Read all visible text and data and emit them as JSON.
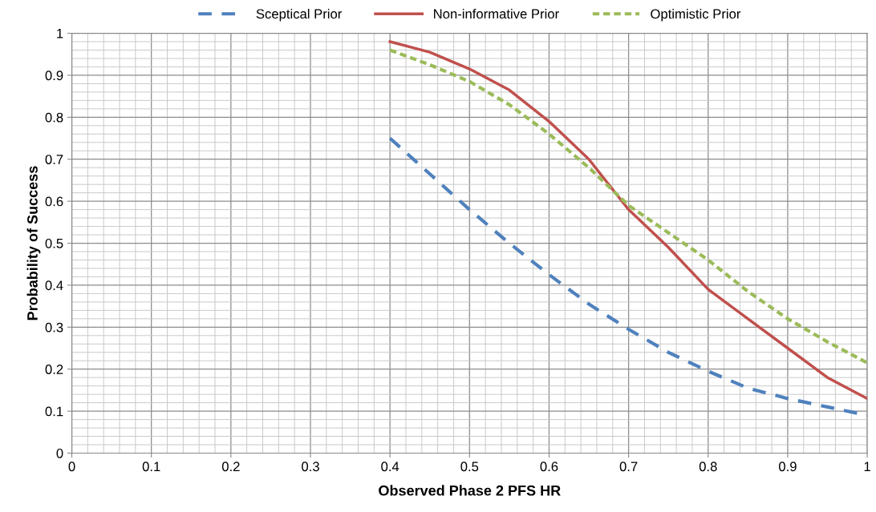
{
  "chart_data": {
    "type": "line",
    "xlabel": "Observed Phase 2 PFS HR",
    "ylabel": "Probability of Success",
    "x": [
      0.4,
      0.45,
      0.5,
      0.55,
      0.6,
      0.65,
      0.7,
      0.75,
      0.8,
      0.85,
      0.9,
      0.95,
      1.0
    ],
    "series": [
      {
        "name": "Sceptical Prior",
        "color": "#4f81bd",
        "line_style": "dashed",
        "values": [
          0.75,
          0.665,
          0.58,
          0.5,
          0.425,
          0.355,
          0.295,
          0.24,
          0.195,
          0.155,
          0.13,
          0.11,
          0.09
        ]
      },
      {
        "name": "Non-informative Prior",
        "color": "#c0504d",
        "line_style": "solid",
        "values": [
          0.98,
          0.955,
          0.915,
          0.865,
          0.79,
          0.7,
          0.58,
          0.49,
          0.39,
          0.32,
          0.25,
          0.18,
          0.13
        ]
      },
      {
        "name": "Optimistic Prior",
        "color": "#9bbb59",
        "line_style": "dotted",
        "values": [
          0.96,
          0.925,
          0.885,
          0.83,
          0.76,
          0.68,
          0.59,
          0.525,
          0.46,
          0.385,
          0.32,
          0.265,
          0.215
        ]
      }
    ],
    "xlim": [
      0,
      1
    ],
    "ylim": [
      0,
      1
    ],
    "xticks": [
      0,
      0.1,
      0.2,
      0.3,
      0.4,
      0.5,
      0.6,
      0.7,
      0.8,
      0.9,
      1
    ],
    "yticks": [
      0,
      0.1,
      0.2,
      0.3,
      0.4,
      0.5,
      0.6,
      0.7,
      0.8,
      0.9,
      1
    ],
    "grid": true,
    "legend": "top",
    "marker": "none"
  }
}
